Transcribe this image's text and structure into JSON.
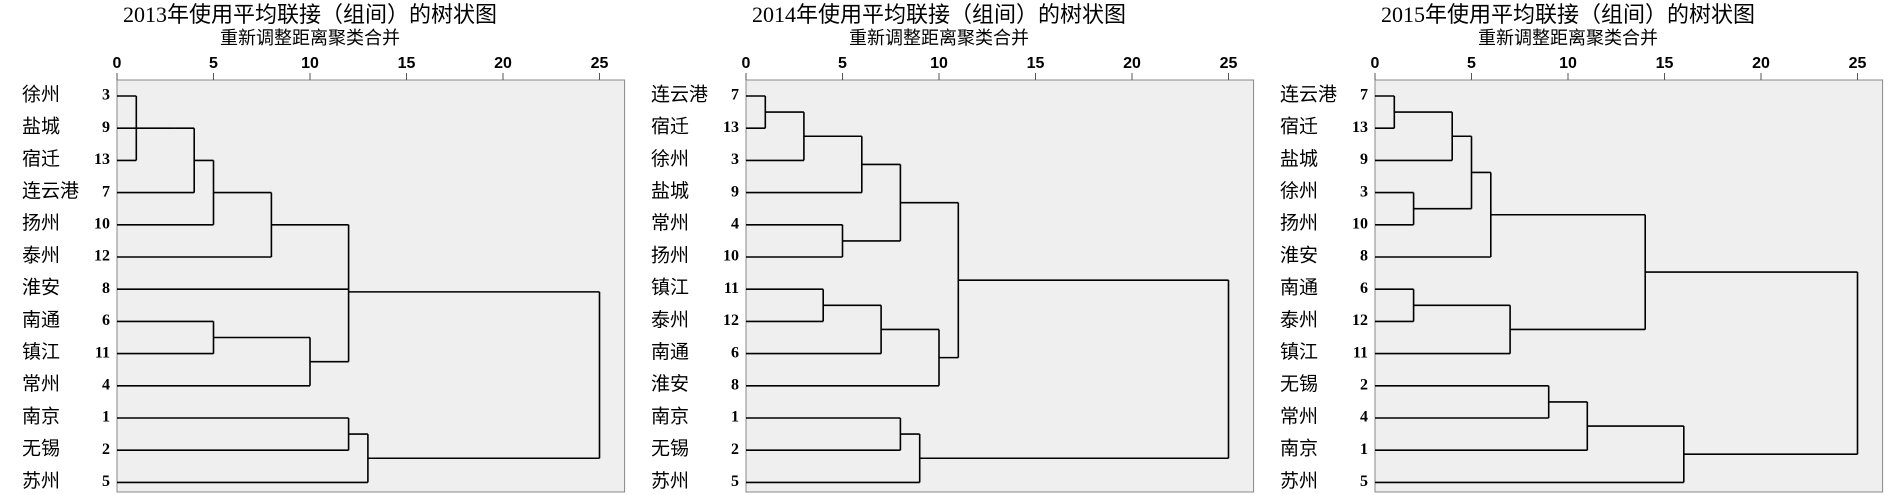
{
  "chart_data": [
    {
      "type": "dendrogram",
      "title": "2013年使用平均联接（组间）的树状图",
      "xlabel": "重新调整距离聚类合并",
      "xlim": [
        0,
        26.3
      ],
      "xticks": [
        0,
        5,
        10,
        15,
        20,
        25
      ],
      "leaves": [
        {
          "name": "徐州",
          "id": 3
        },
        {
          "name": "盐城",
          "id": 9
        },
        {
          "name": "宿迁",
          "id": 13
        },
        {
          "name": "连云港",
          "id": 7
        },
        {
          "name": "扬州",
          "id": 10
        },
        {
          "name": "泰州",
          "id": 12
        },
        {
          "name": "淮安",
          "id": 8
        },
        {
          "name": "南通",
          "id": 6
        },
        {
          "name": "镇江",
          "id": 11
        },
        {
          "name": "常州",
          "id": 4
        },
        {
          "name": "南京",
          "id": 1
        },
        {
          "name": "无锡",
          "id": 2
        },
        {
          "name": "苏州",
          "id": 5
        }
      ],
      "merges": [
        {
          "children": [
            0,
            2
          ],
          "height": 1
        },
        {
          "children": [
            13,
            1
          ],
          "height": 3
        },
        {
          "children": [
            14,
            3
          ],
          "height": 4
        },
        {
          "children": [
            15,
            4
          ],
          "height": 5
        },
        {
          "children": [
            16,
            5
          ],
          "height": 8
        },
        {
          "children": [
            7,
            8
          ],
          "height": 5
        },
        {
          "children": [
            18,
            9
          ],
          "height": 10
        },
        {
          "children": [
            17,
            6,
            19
          ],
          "height": 12
        },
        {
          "children": [
            10,
            11
          ],
          "height": 12
        },
        {
          "children": [
            21,
            12
          ],
          "height": 13
        },
        {
          "children": [
            20,
            22
          ],
          "height": 25
        }
      ]
    },
    {
      "type": "dendrogram",
      "title": "2014年使用平均联接（组间）的树状图",
      "xlabel": "重新调整距离聚类合并",
      "xlim": [
        0,
        26.3
      ],
      "xticks": [
        0,
        5,
        10,
        15,
        20,
        25
      ],
      "leaves": [
        {
          "name": "连云港",
          "id": 7
        },
        {
          "name": "宿迁",
          "id": 13
        },
        {
          "name": "徐州",
          "id": 3
        },
        {
          "name": "盐城",
          "id": 9
        },
        {
          "name": "常州",
          "id": 4
        },
        {
          "name": "扬州",
          "id": 10
        },
        {
          "name": "镇江",
          "id": 11
        },
        {
          "name": "泰州",
          "id": 12
        },
        {
          "name": "南通",
          "id": 6
        },
        {
          "name": "淮安",
          "id": 8
        },
        {
          "name": "南京",
          "id": 1
        },
        {
          "name": "无锡",
          "id": 2
        },
        {
          "name": "苏州",
          "id": 5
        }
      ],
      "merges": [
        {
          "children": [
            0,
            1
          ],
          "height": 1
        },
        {
          "children": [
            13,
            2
          ],
          "height": 3
        },
        {
          "children": [
            14,
            3
          ],
          "height": 6
        },
        {
          "children": [
            4,
            5
          ],
          "height": 5
        },
        {
          "children": [
            15,
            16
          ],
          "height": 8
        },
        {
          "children": [
            6,
            7
          ],
          "height": 4
        },
        {
          "children": [
            18,
            8
          ],
          "height": 7
        },
        {
          "children": [
            19,
            9
          ],
          "height": 10
        },
        {
          "children": [
            17,
            20
          ],
          "height": 11
        },
        {
          "children": [
            10,
            11
          ],
          "height": 8
        },
        {
          "children": [
            22,
            12
          ],
          "height": 9
        },
        {
          "children": [
            21,
            23
          ],
          "height": 25
        }
      ]
    },
    {
      "type": "dendrogram",
      "title": "2015年使用平均联接（组间）的树状图",
      "xlabel": "重新调整距离聚类合并",
      "xlim": [
        0,
        26.3
      ],
      "xticks": [
        0,
        5,
        10,
        15,
        20,
        25
      ],
      "leaves": [
        {
          "name": "连云港",
          "id": 7
        },
        {
          "name": "宿迁",
          "id": 13
        },
        {
          "name": "盐城",
          "id": 9
        },
        {
          "name": "徐州",
          "id": 3
        },
        {
          "name": "扬州",
          "id": 10
        },
        {
          "name": "淮安",
          "id": 8
        },
        {
          "name": "南通",
          "id": 6
        },
        {
          "name": "泰州",
          "id": 12
        },
        {
          "name": "镇江",
          "id": 11
        },
        {
          "name": "无锡",
          "id": 2
        },
        {
          "name": "常州",
          "id": 4
        },
        {
          "name": "南京",
          "id": 1
        },
        {
          "name": "苏州",
          "id": 5
        }
      ],
      "merges": [
        {
          "children": [
            0,
            1
          ],
          "height": 1
        },
        {
          "children": [
            13,
            2
          ],
          "height": 4
        },
        {
          "children": [
            3,
            4
          ],
          "height": 2
        },
        {
          "children": [
            14,
            15
          ],
          "height": 5
        },
        {
          "children": [
            16,
            5
          ],
          "height": 6
        },
        {
          "children": [
            6,
            7
          ],
          "height": 2
        },
        {
          "children": [
            18,
            8
          ],
          "height": 7
        },
        {
          "children": [
            17,
            19
          ],
          "height": 14
        },
        {
          "children": [
            9,
            10
          ],
          "height": 9
        },
        {
          "children": [
            21,
            11
          ],
          "height": 11
        },
        {
          "children": [
            22,
            12
          ],
          "height": 16
        },
        {
          "children": [
            20,
            23
          ],
          "height": 25
        }
      ]
    }
  ]
}
